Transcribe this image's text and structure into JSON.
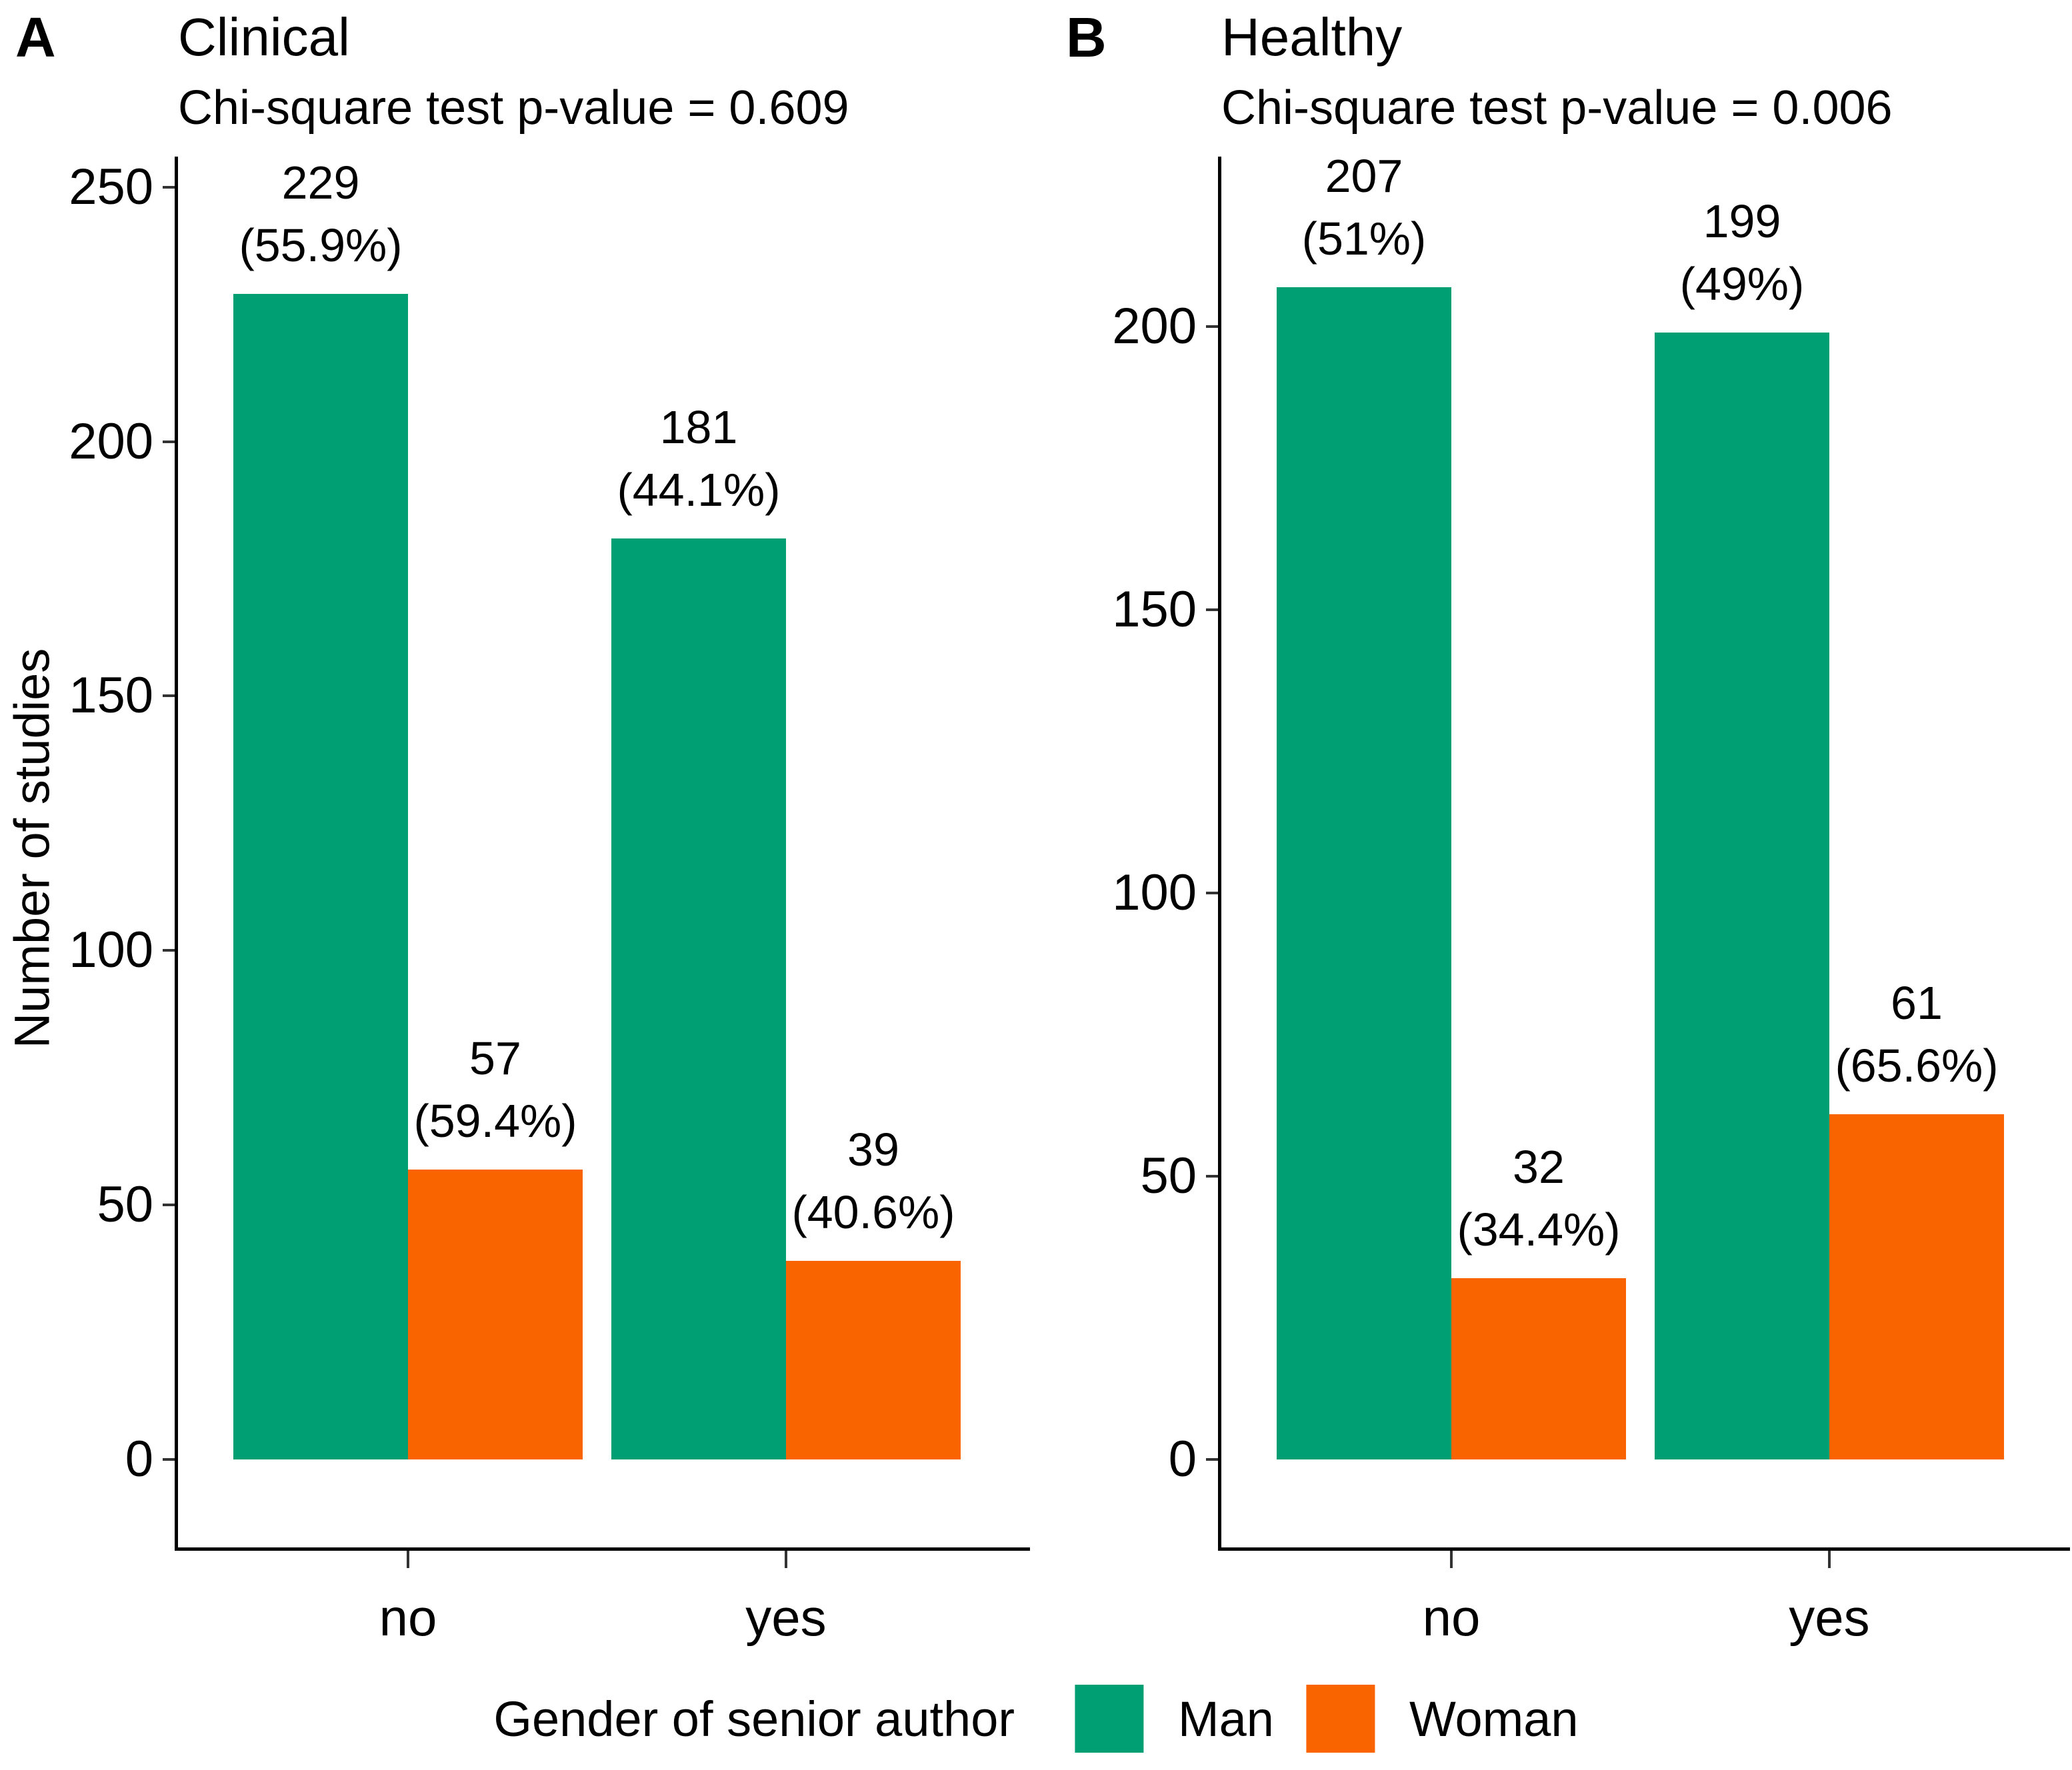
{
  "figure": {
    "y_axis_label": "Number of studies",
    "legend": {
      "title": "Gender of senior author",
      "items": [
        {
          "label": "Man",
          "color": "#009E73"
        },
        {
          "label": "Woman",
          "color": "#FA6400"
        }
      ]
    }
  },
  "chart_data": [
    {
      "type": "bar",
      "panel_tag": "A",
      "title": "Clinical",
      "subtitle": "Chi-square test p-value = 0.609",
      "xlabel": "",
      "ylabel": "Number of studies",
      "categories": [
        "no",
        "yes"
      ],
      "series": [
        {
          "name": "Man",
          "color": "#009E73",
          "values": [
            229,
            181
          ],
          "pct_labels": [
            "55.9%",
            "44.1%"
          ]
        },
        {
          "name": "Woman",
          "color": "#FA6400",
          "values": [
            57,
            39
          ],
          "pct_labels": [
            "59.4%",
            "40.6%"
          ]
        }
      ],
      "yticks": [
        0,
        50,
        100,
        150,
        200,
        250
      ],
      "ylim": [
        0,
        256
      ],
      "grid": false,
      "legend_position": "bottom"
    },
    {
      "type": "bar",
      "panel_tag": "B",
      "title": "Healthy",
      "subtitle": "Chi-square test p-value = 0.006",
      "xlabel": "",
      "ylabel": "Number of studies",
      "categories": [
        "no",
        "yes"
      ],
      "series": [
        {
          "name": "Man",
          "color": "#009E73",
          "values": [
            207,
            199
          ],
          "pct_labels": [
            "51%",
            "49%"
          ]
        },
        {
          "name": "Woman",
          "color": "#FA6400",
          "values": [
            32,
            61
          ],
          "pct_labels": [
            "34.4%",
            "65.6%"
          ]
        }
      ],
      "yticks": [
        0,
        50,
        100,
        150,
        200
      ],
      "ylim": [
        0,
        230
      ],
      "grid": false,
      "legend_position": "bottom"
    }
  ]
}
